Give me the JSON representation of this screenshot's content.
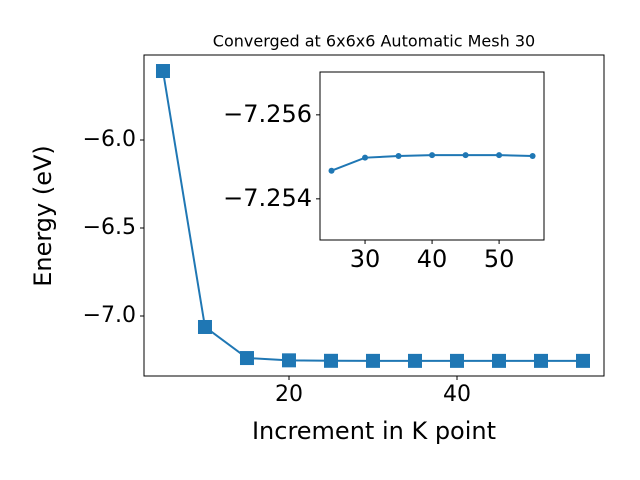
{
  "chart_data": [
    {
      "type": "line",
      "title": "Converged at 6x6x6 Automatic Mesh 30",
      "xlabel": "Increment in K point",
      "ylabel": "Energy (eV)",
      "x": [
        5,
        10,
        15,
        20,
        25,
        30,
        35,
        40,
        45,
        50,
        55
      ],
      "series": [
        {
          "color": "#1f77b4",
          "marker": "square",
          "values": [
            -5.608,
            -7.0625,
            -7.239,
            -7.252,
            -7.25467,
            -7.25498,
            -7.25502,
            -7.25504,
            -7.25504,
            -7.25504,
            -7.25502
          ]
        }
      ],
      "xlim": [
        2.74,
        57.5
      ],
      "ylim": [
        -7.341,
        -5.517
      ],
      "xticks": [
        20,
        40
      ],
      "yticks": [
        {
          "value": -7.0,
          "label": "−7.0"
        },
        {
          "value": -6.5,
          "label": "−6.5"
        },
        {
          "value": -6.0,
          "label": "−6.0"
        }
      ]
    },
    {
      "type": "line",
      "x": [
        25,
        30,
        35,
        40,
        45,
        50,
        55
      ],
      "series": [
        {
          "color": "#1f77b4",
          "marker": "circle",
          "values": [
            -7.25467,
            -7.25498,
            -7.25502,
            -7.25504,
            -7.25504,
            -7.25504,
            -7.25502
          ]
        }
      ],
      "xlim": [
        23.28,
        56.7
      ],
      "ylim": [
        -7.25302,
        -7.25702
      ],
      "xticks": [
        30,
        40,
        50
      ],
      "yticks": [
        {
          "value": -7.254,
          "label": "−7.254"
        },
        {
          "value": -7.256,
          "label": "−7.256"
        }
      ]
    }
  ]
}
